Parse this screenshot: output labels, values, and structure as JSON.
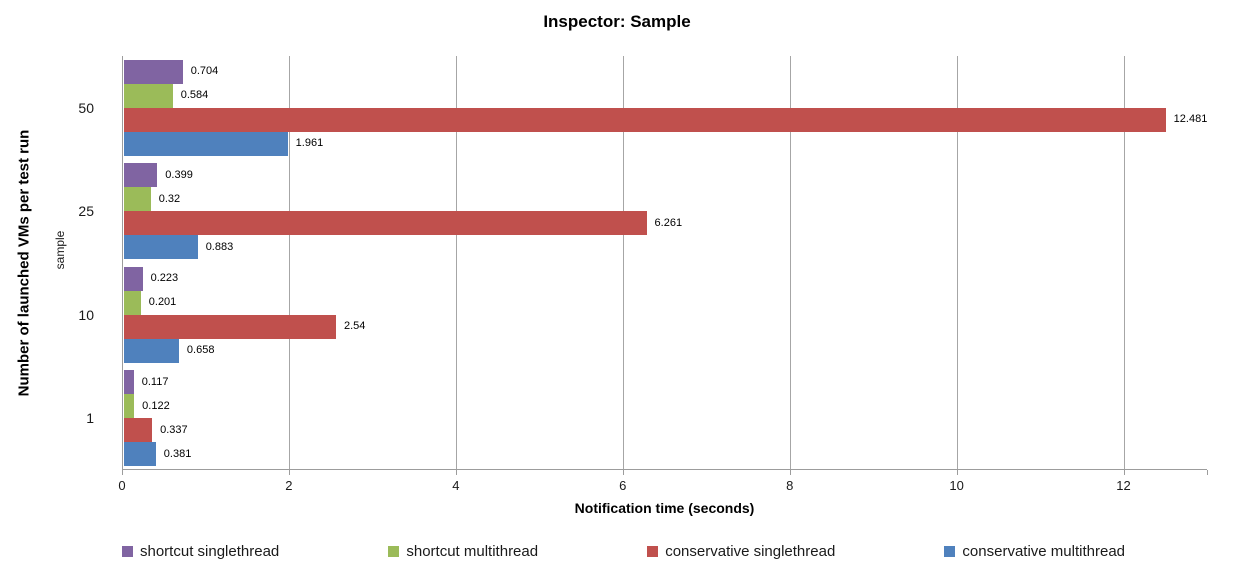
{
  "chart_data": {
    "type": "bar",
    "orientation": "horizontal",
    "title": "Inspector: Sample",
    "xlabel": "Notification time (seconds)",
    "ylabel": "Number of launched VMs per test run",
    "ylabel_secondary": "sample",
    "categories": [
      "50",
      "25",
      "10",
      "1"
    ],
    "series": [
      {
        "name": "shortcut singlethread",
        "color": "#8064A2",
        "values": [
          0.704,
          0.399,
          0.223,
          0.117
        ],
        "labels": [
          "0.704",
          "0.399",
          "0.223",
          "0.117"
        ]
      },
      {
        "name": "shortcut multithread",
        "color": "#9BBB59",
        "values": [
          0.584,
          0.32,
          0.201,
          0.122
        ],
        "labels": [
          "0.584",
          "0.32",
          "0.201",
          "0.122"
        ]
      },
      {
        "name": "conservative singlethread",
        "color": "#C0504D",
        "values": [
          12.481,
          6.261,
          2.54,
          0.337
        ],
        "labels": [
          "12.481",
          "6.261",
          "2.54",
          "0.337"
        ]
      },
      {
        "name": "conservative multithread",
        "color": "#4F81BD",
        "values": [
          1.961,
          0.883,
          0.658,
          0.381
        ],
        "labels": [
          "1.961",
          "0.883",
          "0.658",
          "0.381"
        ]
      }
    ],
    "xlim": [
      0,
      13
    ],
    "xticks": [
      0,
      2,
      4,
      6,
      8,
      10,
      12
    ],
    "grid": "vertical",
    "legend_position": "bottom",
    "colors": {
      "gridline": "#A6A6A6",
      "axis": "#9C9C9C",
      "label_text": "#000000"
    }
  }
}
